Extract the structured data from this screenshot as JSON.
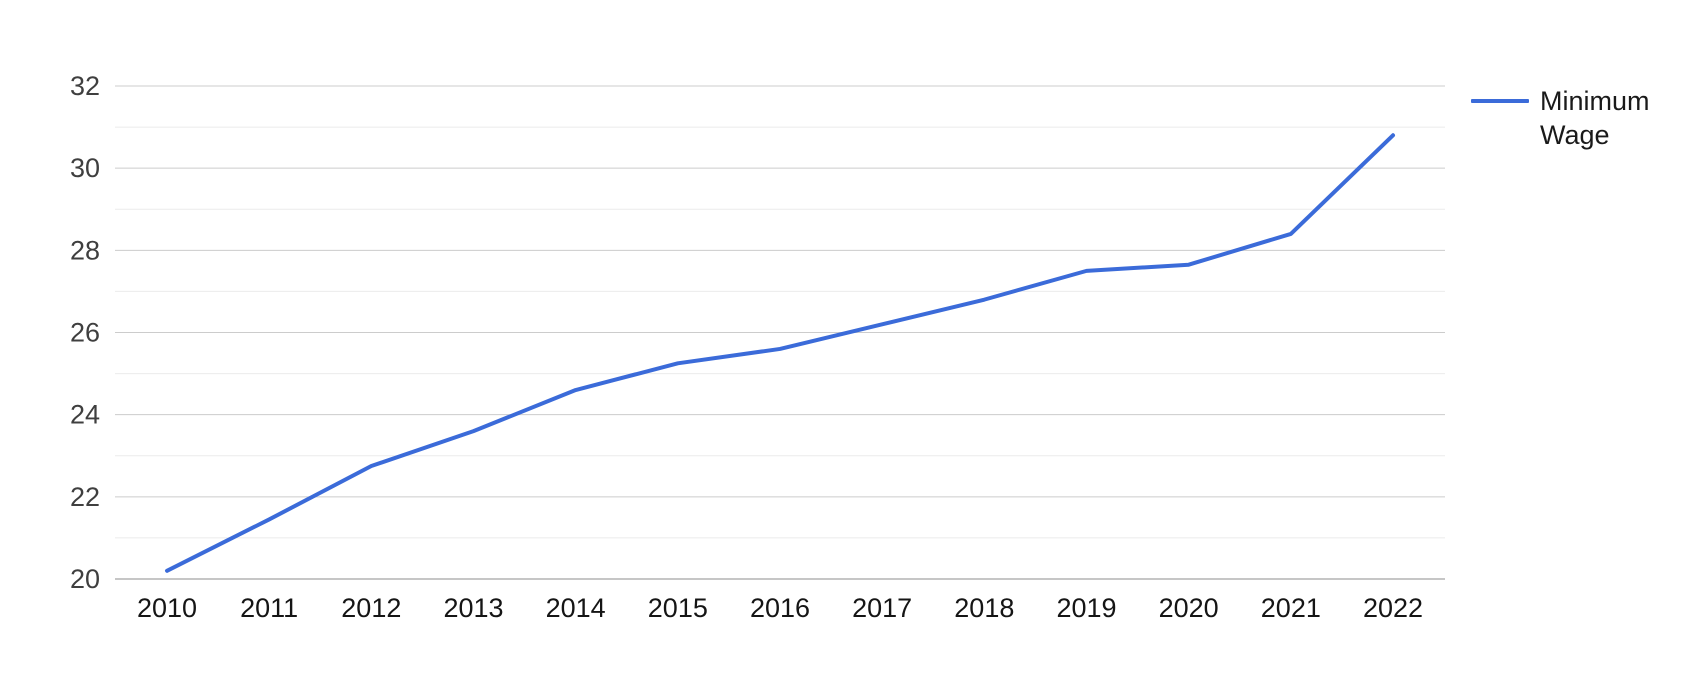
{
  "chart_data": {
    "type": "line",
    "title": "",
    "xlabel": "",
    "ylabel": "",
    "categories": [
      "2010",
      "2011",
      "2012",
      "2013",
      "2014",
      "2015",
      "2016",
      "2017",
      "2018",
      "2019",
      "2020",
      "2021",
      "2022"
    ],
    "series": [
      {
        "name": "Minimum Wage",
        "color": "#3b6bd9",
        "values": [
          20.2,
          21.45,
          22.75,
          23.6,
          24.6,
          25.25,
          25.6,
          26.2,
          26.8,
          27.5,
          27.65,
          28.4,
          30.8
        ]
      }
    ],
    "ylim": [
      20,
      32
    ],
    "y_major_ticks": [
      20,
      22,
      24,
      26,
      28,
      30,
      32
    ],
    "y_minor_gridlines": [
      21,
      23,
      25,
      27,
      29,
      31
    ],
    "grid": {
      "major_color": "#cccccc",
      "minor_color": "#ebebeb",
      "baseline_color": "#b3b3b3"
    },
    "legend_position": "right",
    "line_width": 4
  }
}
